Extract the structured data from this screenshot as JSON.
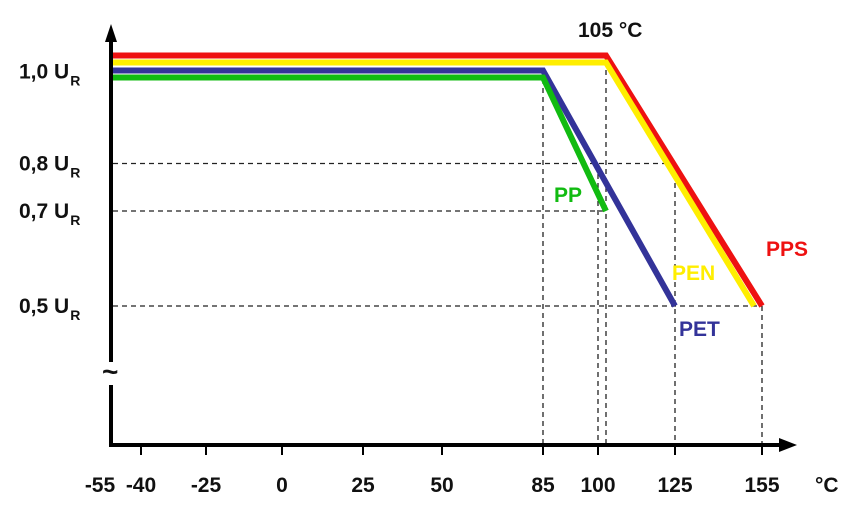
{
  "chart_data": {
    "type": "line",
    "title": "",
    "xlabel": "°C",
    "ylabel": "",
    "annotation": "105 °C",
    "x_ticks": [
      -55,
      -40,
      -25,
      0,
      25,
      50,
      85,
      100,
      125,
      155
    ],
    "x_tick_labels": [
      "-55",
      "-40",
      "-25",
      "0",
      "25",
      "50",
      "85",
      "100",
      "125",
      "155"
    ],
    "y_ticks": [
      {
        "value": 1.0,
        "text": "1,0 U",
        "sub": "R"
      },
      {
        "value": 0.8,
        "text": "0,8 U",
        "sub": "R"
      },
      {
        "value": 0.7,
        "text": "0,7 U",
        "sub": "R"
      },
      {
        "value": 0.5,
        "text": "0,5 U",
        "sub": "R"
      }
    ],
    "axis_break_symbol": "~",
    "series": [
      {
        "name": "PPS",
        "color": "#ee1111",
        "points": [
          [
            -55,
            1.0
          ],
          [
            105,
            1.0
          ],
          [
            155,
            0.5
          ]
        ]
      },
      {
        "name": "PEN",
        "color": "#ffee00",
        "points": [
          [
            -55,
            1.0
          ],
          [
            105,
            1.0
          ],
          [
            152,
            0.5
          ]
        ]
      },
      {
        "name": "PET",
        "color": "#333399",
        "points": [
          [
            -55,
            1.0
          ],
          [
            85,
            1.0
          ],
          [
            125,
            0.5
          ]
        ]
      },
      {
        "name": "PP",
        "color": "#11bb11",
        "points": [
          [
            -55,
            1.0
          ],
          [
            85,
            1.0
          ],
          [
            105,
            0.7
          ]
        ]
      }
    ]
  }
}
